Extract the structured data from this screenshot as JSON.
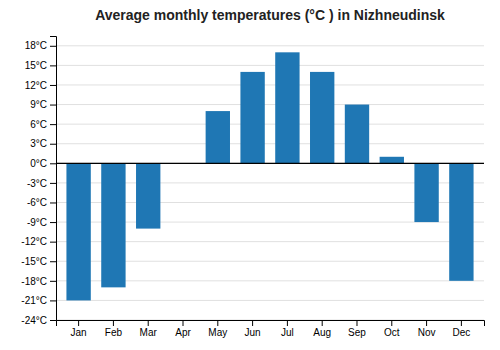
{
  "chart_data": {
    "type": "bar",
    "title": "Average monthly temperatures (°C ) in Nizhneudinsk",
    "categories": [
      "Jan",
      "Feb",
      "Mar",
      "Apr",
      "May",
      "Jun",
      "Jul",
      "Aug",
      "Sep",
      "Oct",
      "Nov",
      "Dec"
    ],
    "values": [
      -21,
      -19,
      -10,
      0,
      8,
      14,
      17,
      14,
      9,
      1,
      -9,
      -18
    ],
    "ylim": [
      -24,
      19.5
    ],
    "yticks": [
      {
        "value": -24,
        "label": "-24°C"
      },
      {
        "value": -21,
        "label": "-21°C"
      },
      {
        "value": -18,
        "label": "-18°C"
      },
      {
        "value": -15,
        "label": "-15°C"
      },
      {
        "value": -12,
        "label": "-12°C"
      },
      {
        "value": -9,
        "label": "-9°C"
      },
      {
        "value": -6,
        "label": "-6°C"
      },
      {
        "value": -3,
        "label": "-3°C"
      },
      {
        "value": 0,
        "label": "0°C"
      },
      {
        "value": 3,
        "label": "3°C"
      },
      {
        "value": 6,
        "label": "6°C"
      },
      {
        "value": 9,
        "label": "9°C"
      },
      {
        "value": 12,
        "label": "12°C"
      },
      {
        "value": 15,
        "label": "15°C"
      },
      {
        "value": 18,
        "label": "18°C"
      }
    ],
    "grid": true
  }
}
